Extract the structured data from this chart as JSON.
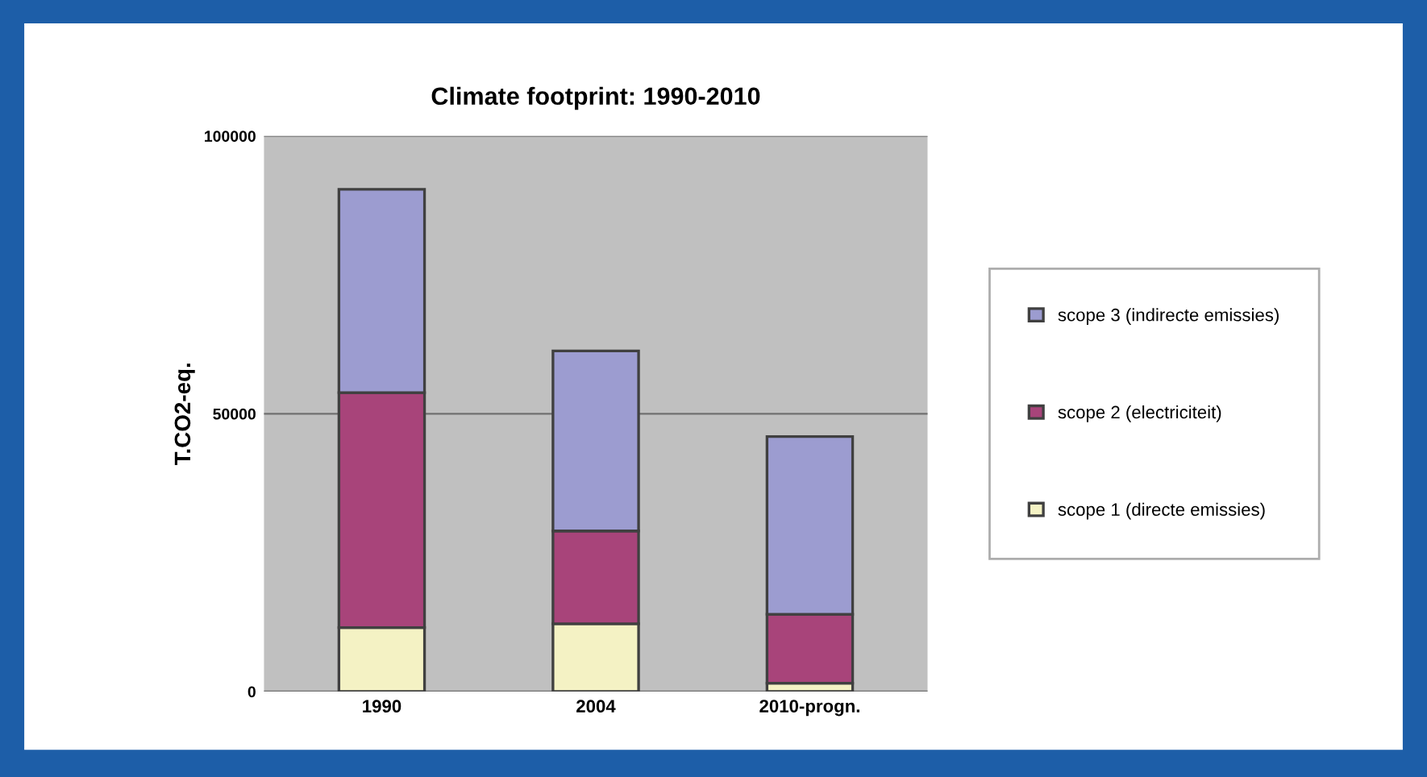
{
  "chart_data": {
    "type": "bar",
    "title": "Climate footprint: 1990-2010",
    "ylabel": "T.CO2-eq.",
    "categories": [
      "1990",
      "2004",
      "2010-progn."
    ],
    "stacked": true,
    "series": [
      {
        "name": "scope 1 (directe emissies)",
        "color": "#f4f2c4",
        "values": [
          11500,
          12200,
          1500
        ]
      },
      {
        "name": "scope 2 (electriciteit)",
        "color": "#a8447a",
        "values": [
          42300,
          16700,
          12400
        ]
      },
      {
        "name": "scope 3 (indirecte emissies)",
        "color": "#9c9cd0",
        "values": [
          36600,
          32400,
          32000
        ]
      }
    ],
    "ylim": [
      0,
      100000
    ],
    "yticks": [
      0,
      50000,
      100000
    ],
    "grid": "y",
    "legend": "right"
  }
}
